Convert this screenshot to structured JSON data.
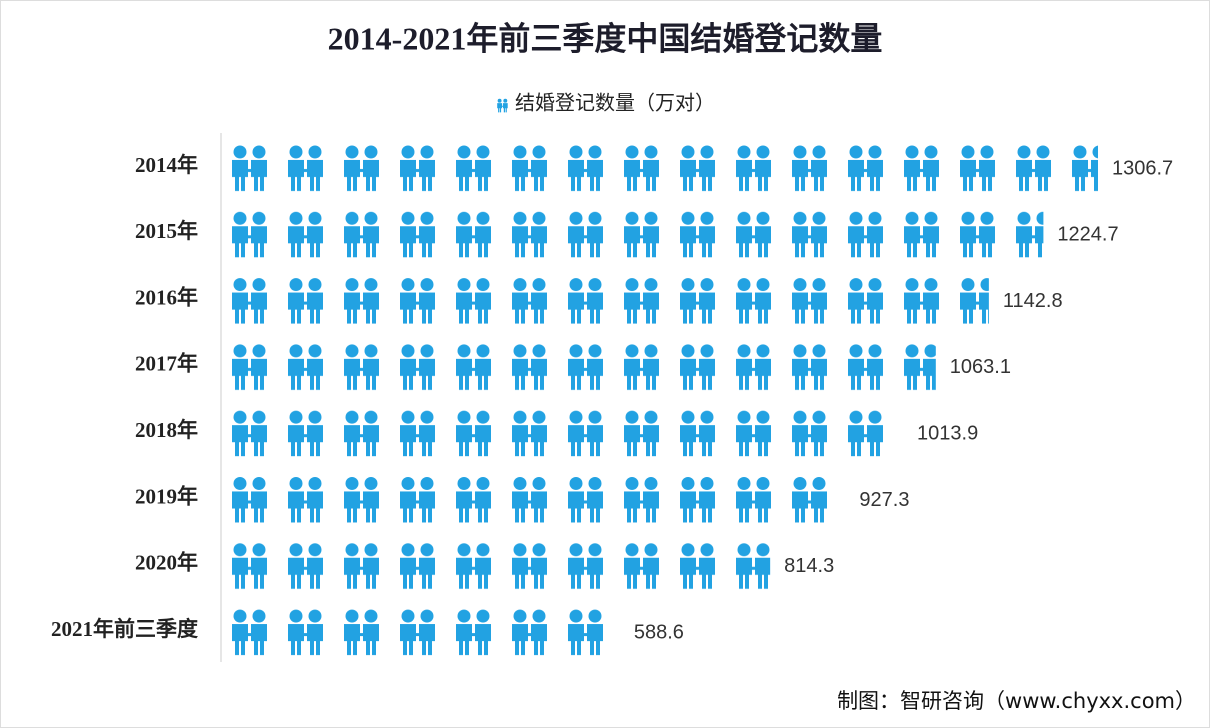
{
  "chart_data": {
    "type": "pictograph",
    "title": "2014-2021年前三季度中国结婚登记数量",
    "legend": "结婚登记数量（万对）",
    "categories": [
      "2014年",
      "2015年",
      "2016年",
      "2017年",
      "2018年",
      "2019年",
      "2020年",
      "2021年前三季度"
    ],
    "values": [
      1306.7,
      1224.7,
      1142.8,
      1063.1,
      1013.9,
      927.3,
      814.3,
      588.6
    ],
    "color": "#22a2e2",
    "source": "制图：智研咨询（www.chyxx.com）"
  }
}
